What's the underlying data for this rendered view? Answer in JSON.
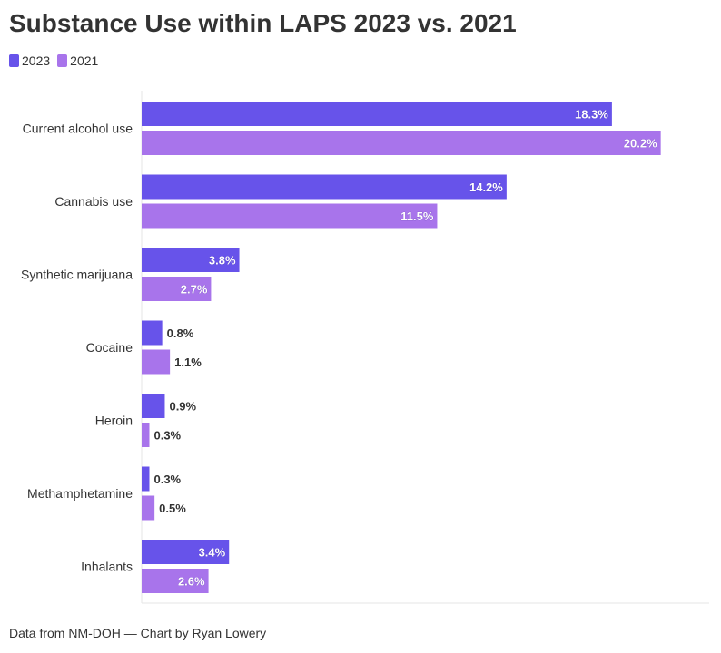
{
  "chart_data": {
    "type": "bar",
    "orientation": "horizontal",
    "title": "Substance Use within LAPS 2023 vs. 2021",
    "categories": [
      "Current alcohol use",
      "Cannabis use",
      "Synthetic marijuana",
      "Cocaine",
      "Heroin",
      "Methamphetamine",
      "Inhalants"
    ],
    "series": [
      {
        "name": "2023",
        "color": "#6753EA",
        "values": [
          18.3,
          14.2,
          3.8,
          0.8,
          0.9,
          0.3,
          3.4
        ],
        "labels": [
          "18.3%",
          "14.2%",
          "3.8%",
          "0.8%",
          "0.9%",
          "0.3%",
          "3.4%"
        ]
      },
      {
        "name": "2021",
        "color": "#A874EB",
        "values": [
          20.2,
          11.5,
          2.7,
          1.1,
          0.3,
          0.5,
          2.6
        ],
        "labels": [
          "20.2%",
          "11.5%",
          "2.7%",
          "1.1%",
          "0.3%",
          "0.5%",
          "2.6%"
        ]
      }
    ],
    "xlim": [
      0,
      22
    ],
    "legend_position": "top-left",
    "grid": false
  },
  "footer": {
    "source": "Data from NM-DOH — Chart by Ryan Lowery"
  }
}
